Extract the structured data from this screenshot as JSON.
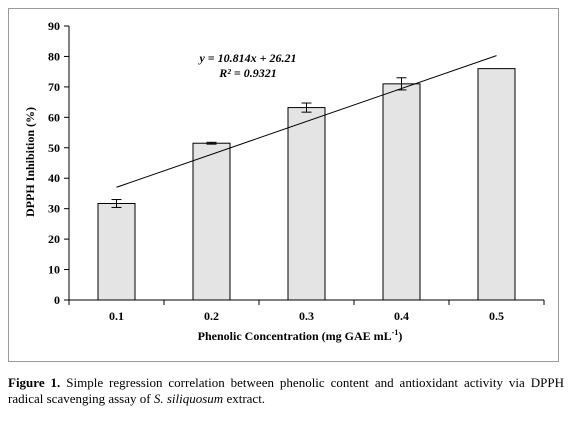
{
  "chart_data": {
    "type": "bar",
    "title": "",
    "xlabel": "Phenolic Concentration (mg GAE mL",
    "xlabel_sup": "-1",
    "xlabel_end": ")",
    "ylabel": "DPPH Inhibition (%)",
    "categories": [
      "0.1",
      "0.2",
      "0.3",
      "0.4",
      "0.5"
    ],
    "values": [
      31.7,
      51.5,
      63.2,
      71.0,
      76.0
    ],
    "errors": [
      1.3,
      0.3,
      1.5,
      2.0,
      0.0
    ],
    "ylim": [
      0,
      90
    ],
    "yticks": [
      "0",
      "10",
      "20",
      "30",
      "40",
      "50",
      "60",
      "70",
      "80",
      "90"
    ],
    "trendline": {
      "type": "linear",
      "slope": 10.814,
      "intercept": 26.21,
      "equation": "y = 10.814x + 26.21",
      "r2_label": "R² = 0.9321"
    },
    "bar_color": "#e4e4e4",
    "grid": false,
    "legend": "none"
  },
  "caption": {
    "label": "Figure 1.",
    "text_before": "Simple regression correlation between phenolic content and antioxidant activity via DPPH radical scavenging assay of",
    "species": "S. siliquosum",
    "text_after": "extract."
  }
}
